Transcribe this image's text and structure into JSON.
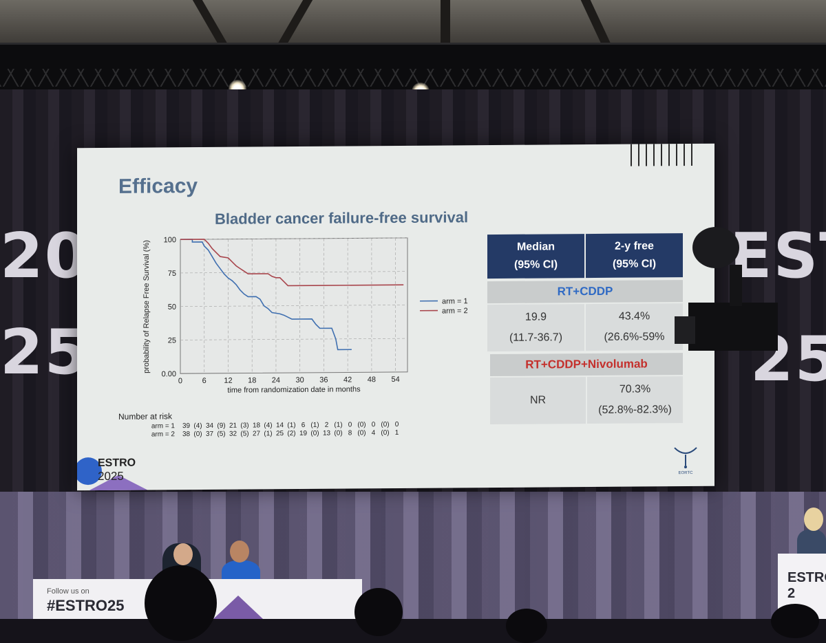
{
  "slide": {
    "title": "Efficacy",
    "chart_title": "Bladder cancer failure-free survival"
  },
  "chart_data": {
    "type": "line",
    "title": "Bladder cancer failure-free survival",
    "xlabel": "time from randomization date in months",
    "ylabel": "probability of Relapse Free Survival (%)",
    "xlim": [
      0,
      57
    ],
    "ylim": [
      0,
      100
    ],
    "x_ticks": [
      "0",
      "6",
      "12",
      "18",
      "24",
      "30",
      "36",
      "42",
      "48",
      "54"
    ],
    "y_ticks": [
      "0.00",
      "25",
      "50",
      "75",
      "100"
    ],
    "grid": true,
    "legend_position": "right",
    "series": [
      {
        "name": "arm = 1",
        "color": "#3f6fb0",
        "points": [
          [
            0,
            100
          ],
          [
            3,
            100
          ],
          [
            3,
            98
          ],
          [
            5.5,
            98
          ],
          [
            6,
            95
          ],
          [
            7,
            92
          ],
          [
            8,
            87
          ],
          [
            9,
            82
          ],
          [
            10,
            78
          ],
          [
            11,
            74
          ],
          [
            12,
            71
          ],
          [
            13,
            69
          ],
          [
            14,
            66
          ],
          [
            15,
            62
          ],
          [
            16,
            59
          ],
          [
            17,
            57
          ],
          [
            19,
            57
          ],
          [
            20,
            55
          ],
          [
            21,
            50
          ],
          [
            22,
            48
          ],
          [
            23,
            45
          ],
          [
            25,
            44
          ],
          [
            26,
            43
          ],
          [
            28,
            40
          ],
          [
            33,
            40
          ],
          [
            34,
            36
          ],
          [
            35,
            33
          ],
          [
            38,
            33
          ],
          [
            39,
            25
          ],
          [
            39.5,
            17
          ],
          [
            43,
            17
          ]
        ]
      },
      {
        "name": "arm = 2",
        "color": "#a8454c",
        "points": [
          [
            0,
            100
          ],
          [
            6,
            100
          ],
          [
            7,
            97
          ],
          [
            8,
            93
          ],
          [
            9,
            90
          ],
          [
            10,
            87
          ],
          [
            12,
            86
          ],
          [
            13,
            83
          ],
          [
            14,
            80
          ],
          [
            15,
            78
          ],
          [
            16,
            76
          ],
          [
            17,
            74
          ],
          [
            22,
            74
          ],
          [
            23,
            72
          ],
          [
            24,
            71
          ],
          [
            25,
            71
          ],
          [
            26,
            68
          ],
          [
            27,
            65
          ],
          [
            36,
            65
          ],
          [
            56,
            65
          ]
        ]
      }
    ]
  },
  "risk_table": {
    "label": "Number at risk",
    "rows": [
      {
        "name": "arm = 1",
        "values": [
          "39",
          "(4)",
          "34",
          "(9)",
          "21",
          "(3)",
          "18",
          "(4)",
          "14",
          "(1)",
          "6",
          "(1)",
          "2",
          "(1)",
          "0",
          "(0)",
          "0",
          "(0)",
          "0"
        ]
      },
      {
        "name": "arm = 2",
        "values": [
          "38",
          "(0)",
          "37",
          "(5)",
          "32",
          "(5)",
          "27",
          "(1)",
          "25",
          "(2)",
          "19",
          "(0)",
          "13",
          "(0)",
          "8",
          "(0)",
          "4",
          "(0)",
          "1"
        ]
      }
    ]
  },
  "results_table": {
    "header_median": "Median\n(95% CI)",
    "header_median_l1": "Median",
    "header_median_l2": "(95% CI)",
    "header_free_l1": "2-y free",
    "header_free_l2": "(95% CI)",
    "arms": [
      {
        "name": "RT+CDDP",
        "color": "#2f6ac4",
        "median_l1": "19.9",
        "median_l2": "(11.7-36.7)",
        "free_l1": "43.4%",
        "free_l2": "(26.6%-59%"
      },
      {
        "name": "RT+CDDP+Nivolumab",
        "color": "#c4302c",
        "median_l1": "NR",
        "median_l2": "",
        "free_l1": "70.3%",
        "free_l2": "(52.8%-82.3%)"
      }
    ]
  },
  "logos": {
    "estro_top": "ESTRO",
    "estro_bottom": "2025",
    "eortc": "EORTC"
  },
  "stage": {
    "follow_text": "Follow us on",
    "hashtag": "#ESTRO25",
    "podium_text": "ESTRO 2",
    "banner_left": "20",
    "banner_left_2": "25",
    "banner_right": "EST",
    "banner_right_2": "25"
  }
}
